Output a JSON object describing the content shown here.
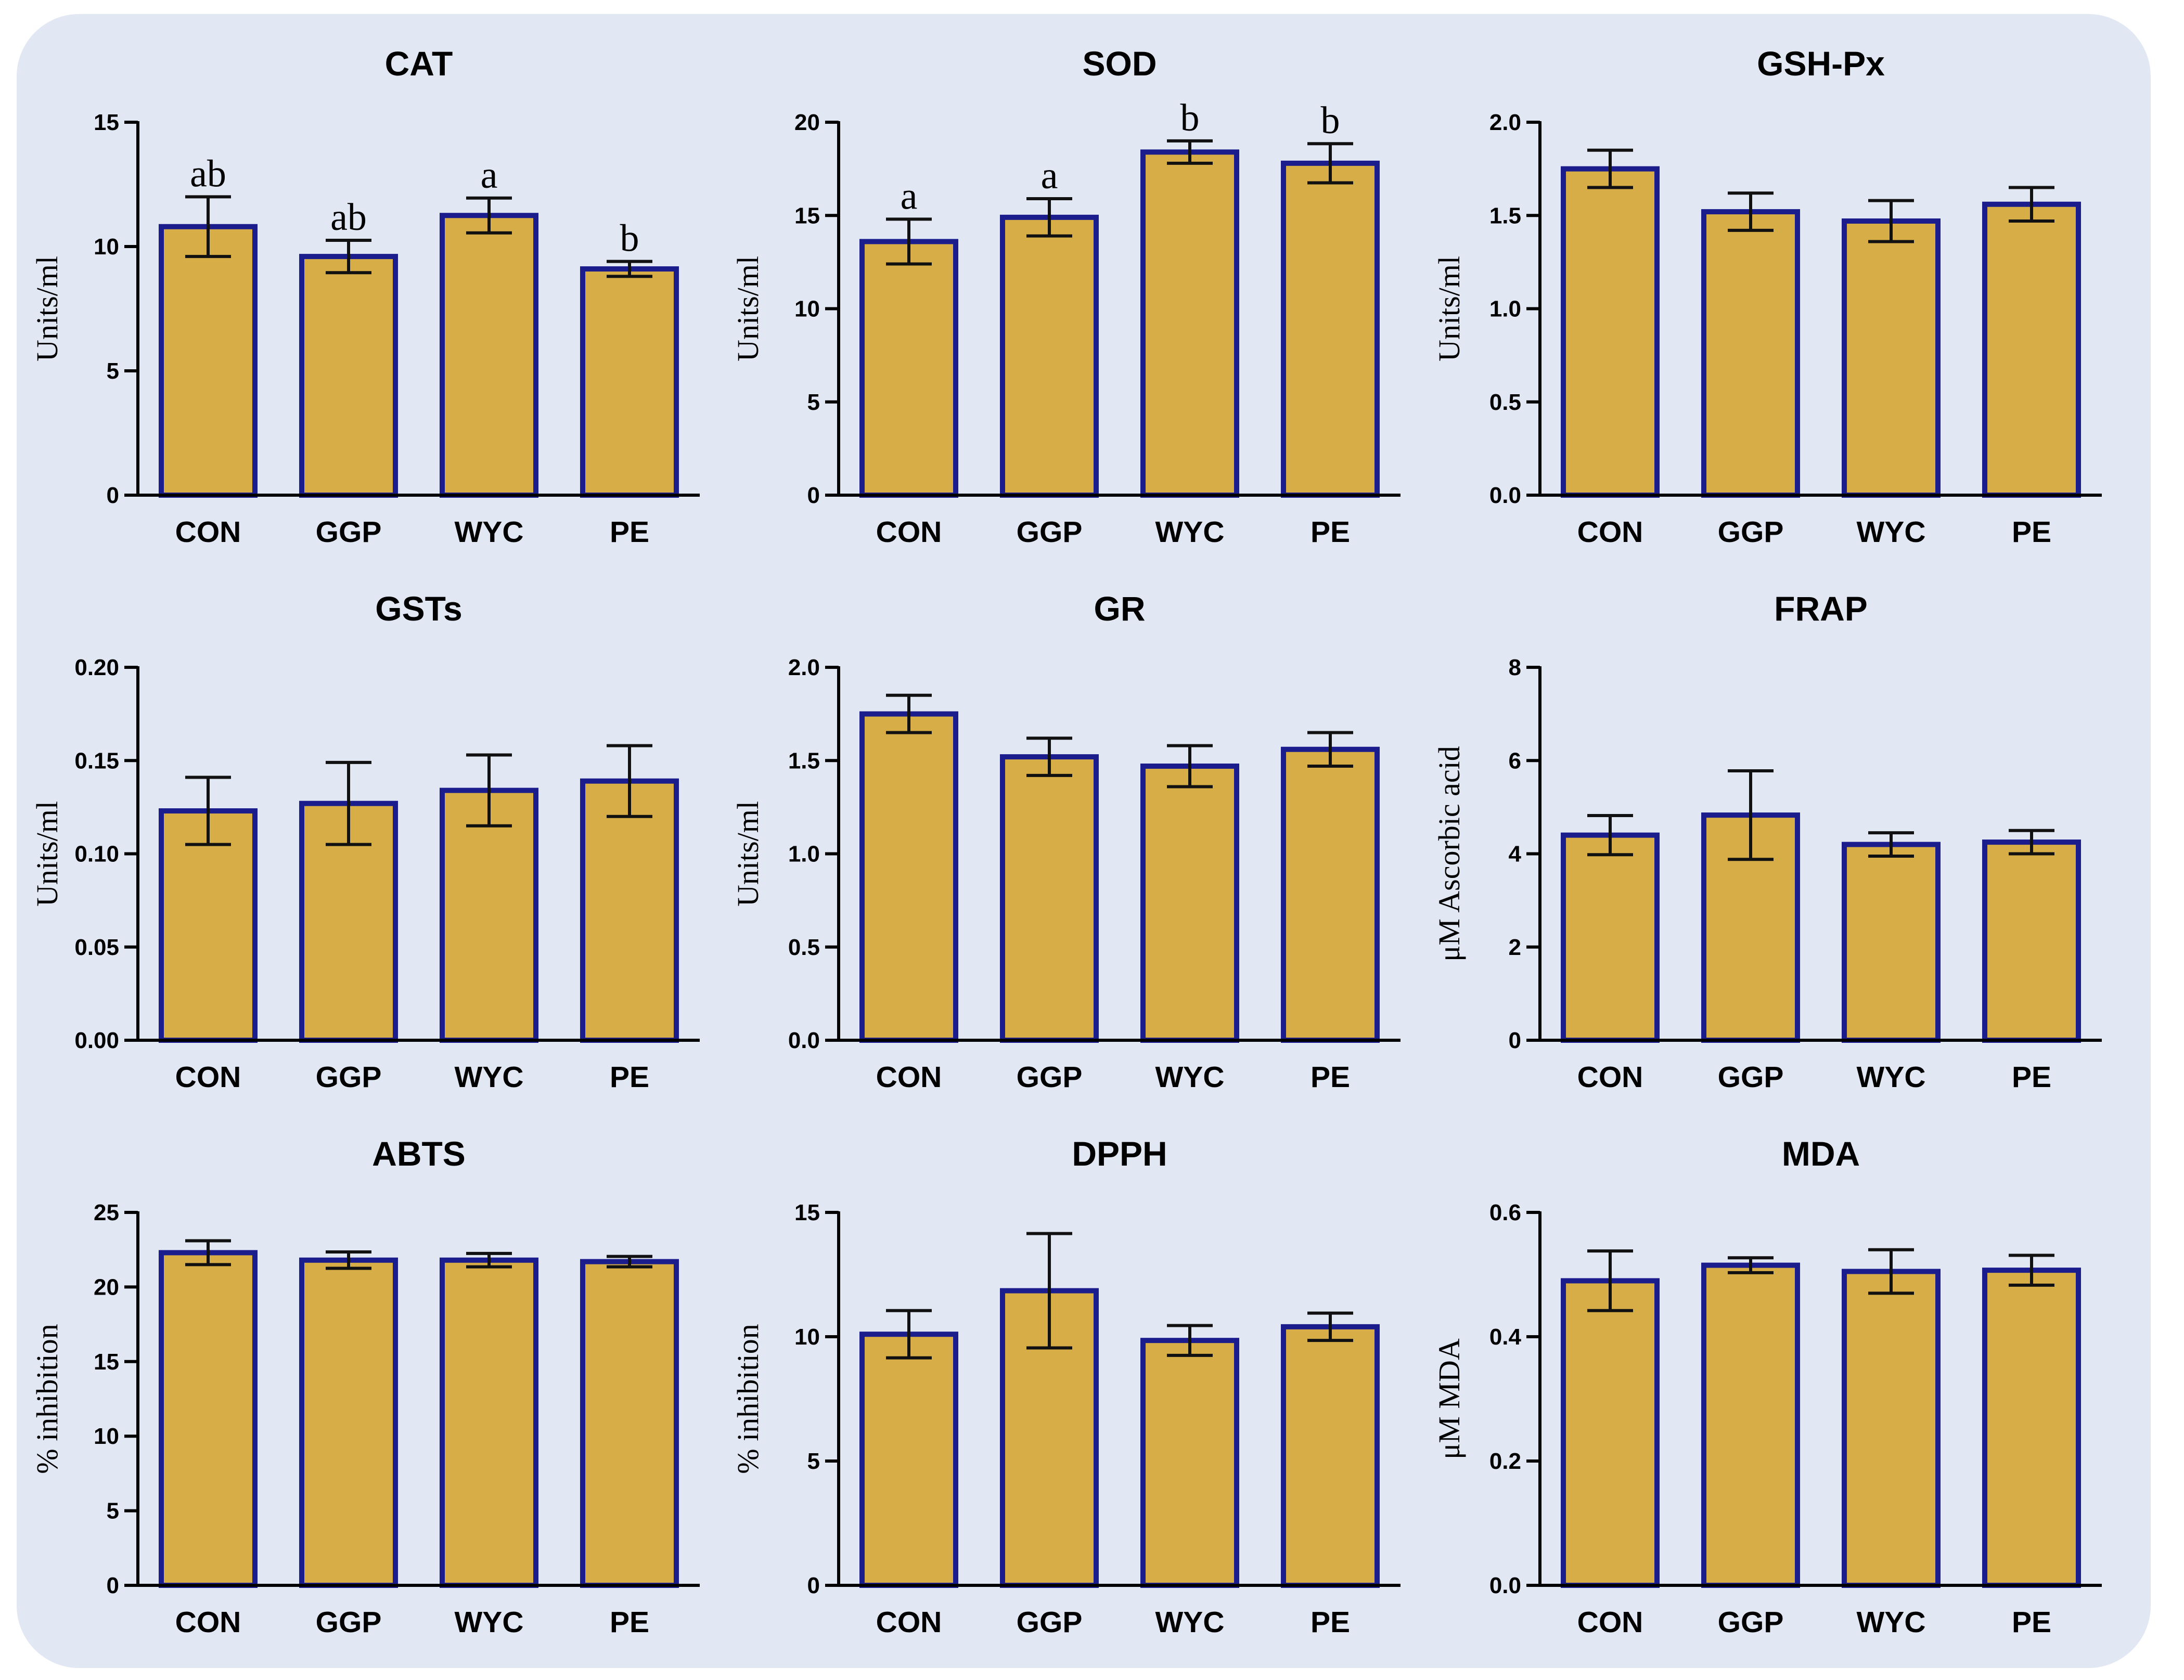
{
  "style": {
    "bar_fill": "#d7ad48",
    "bar_stroke": "#1b1d8c",
    "axis_color": "#000000",
    "background": "#e2e7f4"
  },
  "chart_data": [
    {
      "type": "bar",
      "title": "CAT",
      "ylabel": "Units/ml",
      "ylim": [
        0,
        15
      ],
      "yticks": [
        "0",
        "5",
        "10",
        "15"
      ],
      "categories": [
        "CON",
        "GGP",
        "WYC",
        "PE"
      ],
      "values": [
        10.8,
        9.6,
        11.25,
        9.1
      ],
      "errors": [
        1.2,
        0.65,
        0.7,
        0.3
      ],
      "labels": [
        "ab",
        "ab",
        "a",
        "b"
      ]
    },
    {
      "type": "bar",
      "title": "SOD",
      "ylabel": "Units/ml",
      "ylim": [
        0,
        20
      ],
      "yticks": [
        "0",
        "5",
        "10",
        "15",
        "20"
      ],
      "categories": [
        "CON",
        "GGP",
        "WYC",
        "PE"
      ],
      "values": [
        13.6,
        14.9,
        18.4,
        17.8
      ],
      "errors": [
        1.2,
        1.0,
        0.6,
        1.05
      ],
      "labels": [
        "a",
        "a",
        "b",
        "b"
      ]
    },
    {
      "type": "bar",
      "title": "GSH-Px",
      "ylabel": "Units/ml",
      "ylim": [
        0,
        2
      ],
      "yticks": [
        "0.0",
        "0.5",
        "1.0",
        "1.5",
        "2.0"
      ],
      "categories": [
        "CON",
        "GGP",
        "WYC",
        "PE"
      ],
      "values": [
        1.75,
        1.52,
        1.47,
        1.56
      ],
      "errors": [
        0.1,
        0.1,
        0.11,
        0.09
      ],
      "labels": [
        "",
        "",
        "",
        ""
      ]
    },
    {
      "type": "bar",
      "title": "GSTs",
      "ylabel": "Units/ml",
      "ylim": [
        0,
        0.2
      ],
      "yticks": [
        "0.00",
        "0.05",
        "0.10",
        "0.15",
        "0.20"
      ],
      "categories": [
        "CON",
        "GGP",
        "WYC",
        "PE"
      ],
      "values": [
        0.123,
        0.127,
        0.134,
        0.139
      ],
      "errors": [
        0.018,
        0.022,
        0.019,
        0.019
      ],
      "labels": [
        "",
        "",
        "",
        ""
      ]
    },
    {
      "type": "bar",
      "title": "GR",
      "ylabel": "Units/ml",
      "ylim": [
        0,
        2
      ],
      "yticks": [
        "0.0",
        "0.5",
        "1.0",
        "1.5",
        "2.0"
      ],
      "categories": [
        "CON",
        "GGP",
        "WYC",
        "PE"
      ],
      "values": [
        1.75,
        1.52,
        1.47,
        1.56
      ],
      "errors": [
        0.1,
        0.1,
        0.11,
        0.09
      ],
      "labels": [
        "",
        "",
        "",
        ""
      ]
    },
    {
      "type": "bar",
      "title": "FRAP",
      "ylabel": "μM Ascorbic acid",
      "ylim": [
        0,
        8
      ],
      "yticks": [
        "0",
        "2",
        "4",
        "6",
        "8"
      ],
      "categories": [
        "CON",
        "GGP",
        "WYC",
        "PE"
      ],
      "values": [
        4.4,
        4.83,
        4.2,
        4.25
      ],
      "errors": [
        0.42,
        0.95,
        0.25,
        0.25
      ],
      "labels": [
        "",
        "",
        "",
        ""
      ]
    },
    {
      "type": "bar",
      "title": "ABTS",
      "ylabel": "% inhibition",
      "ylim": [
        0,
        25
      ],
      "yticks": [
        "0",
        "5",
        "10",
        "15",
        "20",
        "25"
      ],
      "categories": [
        "CON",
        "GGP",
        "WYC",
        "PE"
      ],
      "values": [
        22.3,
        21.8,
        21.8,
        21.7
      ],
      "errors": [
        0.8,
        0.55,
        0.45,
        0.35
      ],
      "labels": [
        "",
        "",
        "",
        ""
      ]
    },
    {
      "type": "bar",
      "title": "DPPH",
      "ylabel": "% inhibition",
      "ylim": [
        0,
        15
      ],
      "yticks": [
        "0",
        "5",
        "10",
        "15"
      ],
      "categories": [
        "CON",
        "GGP",
        "WYC",
        "PE"
      ],
      "values": [
        10.1,
        11.85,
        9.85,
        10.4
      ],
      "errors": [
        0.95,
        2.3,
        0.6,
        0.55
      ],
      "labels": [
        "",
        "",
        "",
        ""
      ]
    },
    {
      "type": "bar",
      "title": "MDA",
      "ylabel": "μM MDA",
      "ylim": [
        0,
        0.6
      ],
      "yticks": [
        "0.0",
        "0.2",
        "0.4",
        "0.6"
      ],
      "categories": [
        "CON",
        "GGP",
        "WYC",
        "PE"
      ],
      "values": [
        0.49,
        0.515,
        0.505,
        0.507
      ],
      "errors": [
        0.048,
        0.012,
        0.035,
        0.024
      ],
      "labels": [
        "",
        "",
        "",
        ""
      ]
    }
  ]
}
